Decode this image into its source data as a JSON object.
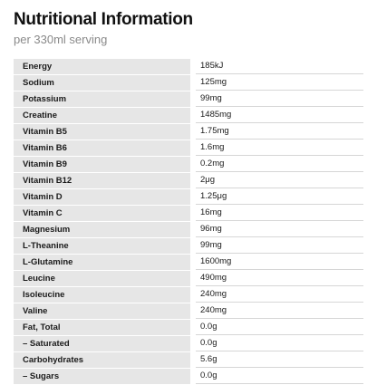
{
  "header": {
    "title": "Nutritional Information",
    "subtitle": "per 330ml serving"
  },
  "nutrients": [
    {
      "name": "Energy",
      "value": "185kJ"
    },
    {
      "name": "Sodium",
      "value": "125mg"
    },
    {
      "name": "Potassium",
      "value": "99mg"
    },
    {
      "name": "Creatine",
      "value": "1485mg"
    },
    {
      "name": "Vitamin B5",
      "value": "1.75mg"
    },
    {
      "name": "Vitamin B6",
      "value": "1.6mg"
    },
    {
      "name": "Vitamin B9",
      "value": "0.2mg"
    },
    {
      "name": "Vitamin B12",
      "value": "2μg"
    },
    {
      "name": "Vitamin D",
      "value": "1.25μg"
    },
    {
      "name": "Vitamin C",
      "value": "16mg"
    },
    {
      "name": "Magnesium",
      "value": "96mg"
    },
    {
      "name": "L-Theanine",
      "value": "99mg"
    },
    {
      "name": "L-Glutamine",
      "value": "1600mg"
    },
    {
      "name": "Leucine",
      "value": "490mg"
    },
    {
      "name": "Isoleucine",
      "value": "240mg"
    },
    {
      "name": "Valine",
      "value": "240mg"
    },
    {
      "name": "Fat, Total",
      "value": "0.0g"
    },
    {
      "name": "– Saturated",
      "value": "0.0g"
    },
    {
      "name": "Carbohydrates",
      "value": "5.6g"
    },
    {
      "name": "– Sugars",
      "value": "0.0g"
    }
  ]
}
